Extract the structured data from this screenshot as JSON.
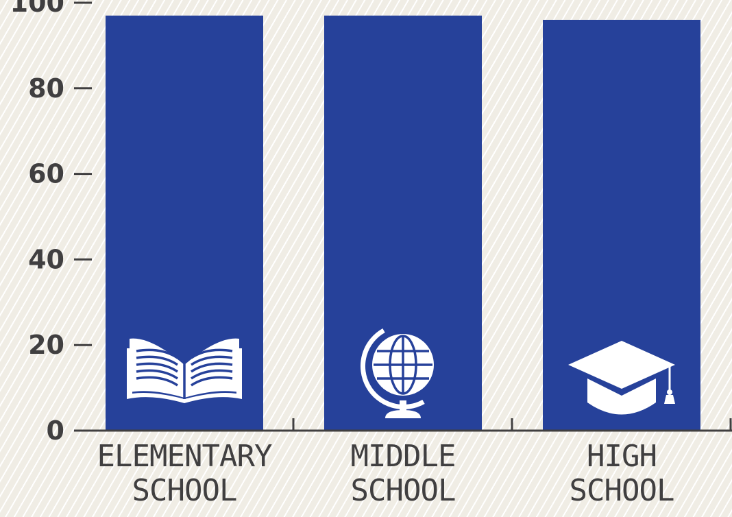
{
  "chart_data": {
    "type": "bar",
    "categories": [
      [
        "ELEMENTARY",
        "SCHOOL"
      ],
      [
        "MIDDLE",
        "SCHOOL"
      ],
      [
        "HIGH",
        "SCHOOL"
      ]
    ],
    "values": [
      97,
      97,
      96
    ],
    "icons": [
      "open-book-icon",
      "globe-icon",
      "graduation-cap-icon"
    ],
    "yticks": [
      0,
      20,
      40,
      60,
      80,
      100
    ],
    "ylim": [
      0,
      100
    ],
    "bar_color": "#26419a",
    "icon_color": "#ffffff",
    "text_color": "#403f40"
  }
}
